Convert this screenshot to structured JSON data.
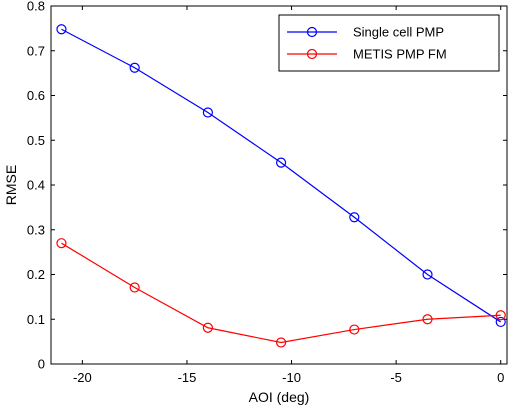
{
  "chart_data": {
    "type": "line",
    "xlabel": "AOI (deg)",
    "ylabel": "RMSE",
    "xlim": [
      -21.5,
      0.3
    ],
    "ylim": [
      0,
      0.8
    ],
    "xticks": [
      -20,
      -15,
      -10,
      -5,
      0
    ],
    "yticks": [
      0,
      0.1,
      0.2,
      0.3,
      0.4,
      0.5,
      0.6,
      0.7,
      0.8
    ],
    "grid": false,
    "legend_position": "top-right",
    "series": [
      {
        "name": "Single cell PMP",
        "color": "#0000ff",
        "marker": "circle",
        "x": [
          -21,
          -17.5,
          -14,
          -10.5,
          -7,
          -3.5,
          0
        ],
        "y": [
          0.748,
          0.662,
          0.562,
          0.45,
          0.328,
          0.2,
          0.094
        ]
      },
      {
        "name": "METIS PMP FM",
        "color": "#ff0000",
        "marker": "circle",
        "x": [
          -21,
          -17.5,
          -14,
          -10.5,
          -7,
          -3.5,
          0
        ],
        "y": [
          0.27,
          0.171,
          0.081,
          0.048,
          0.077,
          0.1,
          0.109
        ]
      }
    ]
  }
}
